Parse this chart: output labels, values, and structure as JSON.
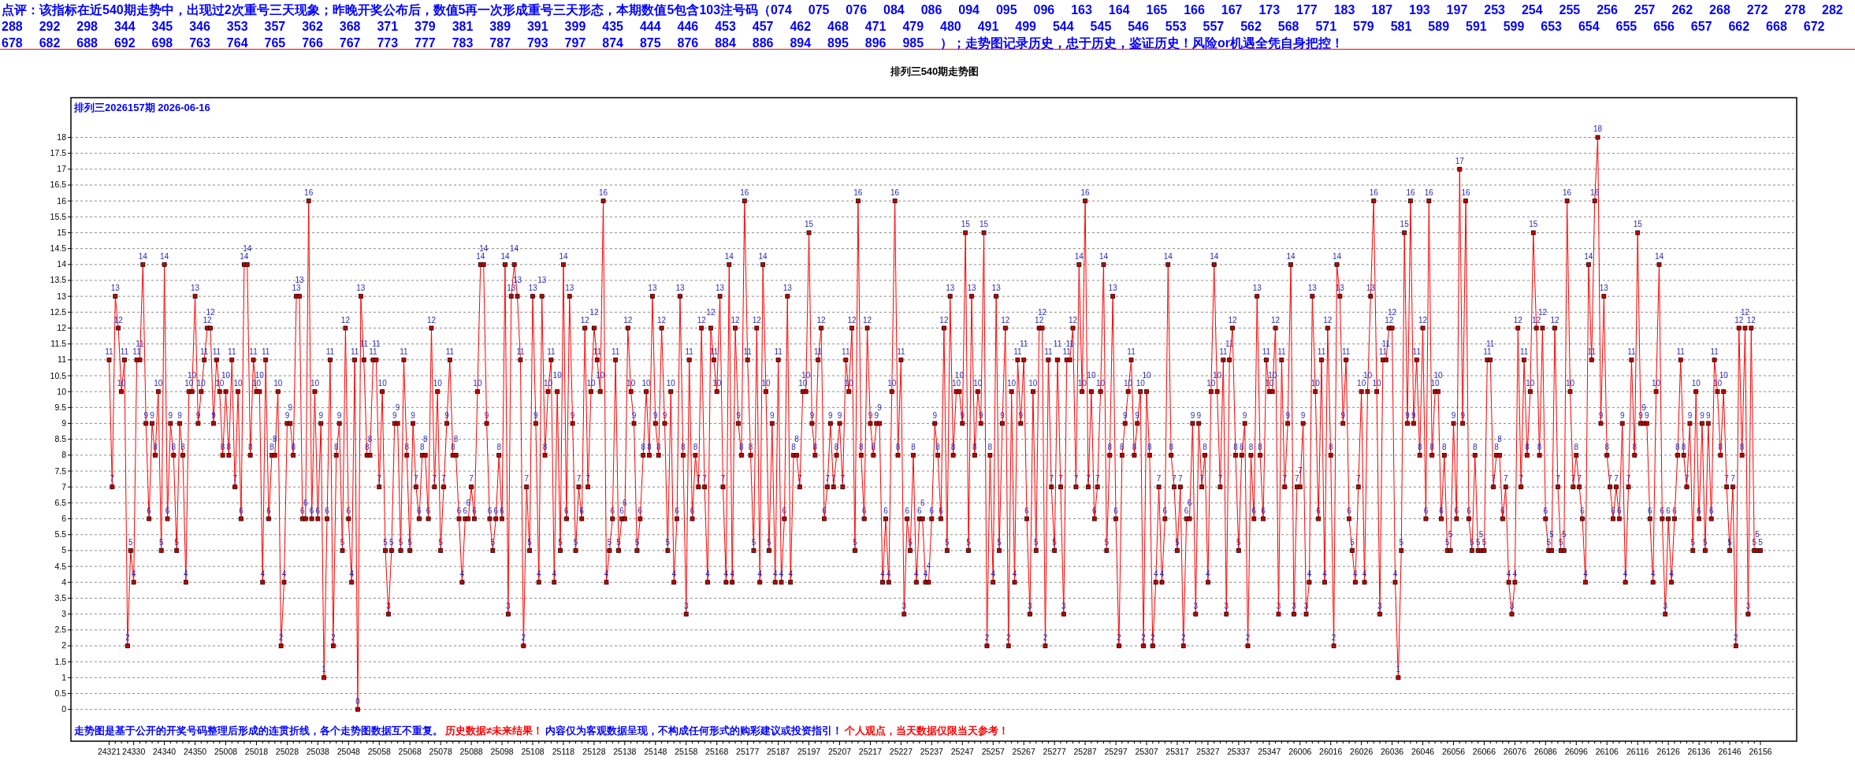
{
  "chart_data": {
    "type": "line",
    "title": "排列三540期走势图",
    "subtitle": "排列三2026157期 2026-06-16",
    "annotations": [
      "点评：该指标在近540期走势中，出现过2次重号三天现象；昨晚开奖公布后，数值5再一次形成重号三天形态，本期数值5包含103注号码（074 075 076 084 086 094 095 096 163 164 165 166 167 173 177 183 187 193 197 253 254 255 256 257 262 268 272 278 282 288 292 298 344 345 346 353 357 362 368 371 379 381 389 391 399 435 444 446 453 457 462 468 471 479 480 491 499 544 545 546 553 557 562 568 571 579 581 589 591 599 653 654 655 656 657 662 668 672 678 682 688 692 698 763 764 765 766 767 773 777 783 787 793 797 874 875 876 884 886 894 895 896 985 ）；走势图记录历史，忠于历史，鉴证历史！风险or机遇全凭自身把控！",
      "走势图是基于公开的开奖号码整理后形成的连贯折线，各个走势图数据互不重复。",
      "历史数据≠未来结果！",
      "内容仅为客观数据呈现，不构成任何形式的购彩建议或投资指引！",
      "个人观点，当天数据仅限当天参考！"
    ],
    "categories": [
      "24321",
      null,
      null,
      null,
      null,
      null,
      null,
      null,
      "24330",
      null,
      null,
      null,
      null,
      null,
      null,
      null,
      null,
      null,
      "24340",
      null,
      null,
      null,
      null,
      null,
      null,
      null,
      null,
      null,
      "24350",
      null,
      null,
      null,
      null,
      null,
      null,
      null,
      null,
      null,
      "25008",
      null,
      null,
      null,
      null,
      null,
      null,
      null,
      null,
      null,
      "25018",
      null,
      null,
      null,
      null,
      null,
      null,
      null,
      null,
      null,
      "25028",
      null,
      null,
      null,
      null,
      null,
      null,
      null,
      null,
      null,
      "25038",
      null,
      null,
      null,
      null,
      null,
      null,
      null,
      null,
      null,
      "25048",
      null,
      null,
      null,
      null,
      null,
      null,
      null,
      null,
      null,
      "25058",
      null,
      null,
      null,
      null,
      null,
      null,
      null,
      null,
      null,
      "25068",
      null,
      null,
      null,
      null,
      null,
      null,
      null,
      null,
      null,
      "25078",
      null,
      null,
      null,
      null,
      null,
      null,
      null,
      null,
      null,
      "25088",
      null,
      null,
      null,
      null,
      null,
      null,
      null,
      null,
      null,
      "25098",
      null,
      null,
      null,
      null,
      null,
      null,
      null,
      null,
      null,
      "25108",
      null,
      null,
      null,
      null,
      null,
      null,
      null,
      null,
      null,
      "25118",
      null,
      null,
      null,
      null,
      null,
      null,
      null,
      null,
      null,
      "25128",
      null,
      null,
      null,
      null,
      null,
      null,
      null,
      null,
      null,
      "25138",
      null,
      null,
      null,
      null,
      null,
      null,
      null,
      null,
      null,
      "25148",
      null,
      null,
      null,
      null,
      null,
      null,
      null,
      null,
      null,
      "25158",
      null,
      null,
      null,
      null,
      null,
      null,
      null,
      null,
      null,
      "25168",
      null,
      null,
      null,
      null,
      null,
      null,
      null,
      null,
      null,
      "25177",
      null,
      null,
      null,
      null,
      null,
      null,
      null,
      null,
      null,
      "25187",
      null,
      null,
      null,
      null,
      null,
      null,
      null,
      null,
      null,
      "25197",
      null,
      null,
      null,
      null,
      null,
      null,
      null,
      null,
      null,
      "25207",
      null,
      null,
      null,
      null,
      null,
      null,
      null,
      null,
      null,
      "25217",
      null,
      null,
      null,
      null,
      null,
      null,
      null,
      null,
      null,
      "25227",
      null,
      null,
      null,
      null,
      null,
      null,
      null,
      null,
      null,
      "25237",
      null,
      null,
      null,
      null,
      null,
      null,
      null,
      null,
      null,
      "25247",
      null,
      null,
      null,
      null,
      null,
      null,
      null,
      null,
      null,
      "25257",
      null,
      null,
      null,
      null,
      null,
      null,
      null,
      null,
      null,
      "25267",
      null,
      null,
      null,
      null,
      null,
      null,
      null,
      null,
      null,
      "25277",
      null,
      null,
      null,
      null,
      null,
      null,
      null,
      null,
      null,
      "25287",
      null,
      null,
      null,
      null,
      null,
      null,
      null,
      null,
      null,
      "25297",
      null,
      null,
      null,
      null,
      null,
      null,
      null,
      null,
      null,
      "25307",
      null,
      null,
      null,
      null,
      null,
      null,
      null,
      null,
      null,
      "25317",
      null,
      null,
      null,
      null,
      null,
      null,
      null,
      null,
      null,
      "25327",
      null,
      null,
      null,
      null,
      null,
      null,
      null,
      null,
      null,
      "25337",
      null,
      null,
      null,
      null,
      null,
      null,
      null,
      null,
      null,
      "25347",
      null,
      null,
      null,
      null,
      null,
      null,
      null,
      null,
      null,
      "26006",
      null,
      null,
      null,
      null,
      null,
      null,
      null,
      null,
      null,
      "26016",
      null,
      null,
      null,
      null,
      null,
      null,
      null,
      null,
      null,
      "26026",
      null,
      null,
      null,
      null,
      null,
      null,
      null,
      null,
      null,
      "26036",
      null,
      null,
      null,
      null,
      null,
      null,
      null,
      null,
      null,
      "26046",
      null,
      null,
      null,
      null,
      null,
      null,
      null,
      null,
      null,
      "26056",
      null,
      null,
      null,
      null,
      null,
      null,
      null,
      null,
      null,
      "26066",
      null,
      null,
      null,
      null,
      null,
      null,
      null,
      null,
      null,
      "26076",
      null,
      null,
      null,
      null,
      null,
      null,
      null,
      null,
      null,
      "26086",
      null,
      null,
      null,
      null,
      null,
      null,
      null,
      null,
      null,
      "26096",
      null,
      null,
      null,
      null,
      null,
      null,
      null,
      null,
      null,
      "26106",
      null,
      null,
      null,
      null,
      null,
      null,
      null,
      null,
      null,
      "26116",
      null,
      null,
      null,
      null,
      null,
      null,
      null,
      null,
      null,
      "26126",
      null,
      null,
      null,
      null,
      null,
      null,
      null,
      null,
      null,
      "26136",
      null,
      null,
      null,
      null,
      null,
      null,
      null,
      null,
      null,
      "26146",
      null,
      null,
      null,
      null,
      null,
      null,
      null,
      null,
      null,
      "26156"
    ],
    "series": [
      {
        "color": "#ff0000",
        "values": [
          11,
          7,
          13,
          12,
          10,
          11,
          2,
          5,
          4,
          11,
          11,
          14,
          9,
          6,
          9,
          8,
          10,
          5,
          14,
          6,
          9,
          8,
          5,
          9,
          8,
          4,
          10,
          10,
          13,
          9,
          10,
          11,
          12,
          12,
          9,
          11,
          10,
          8,
          10,
          8,
          11,
          7,
          10,
          6,
          14,
          14,
          8,
          11,
          10,
          10,
          4,
          11,
          6,
          8,
          8,
          10,
          2,
          4,
          9,
          9,
          8,
          13,
          13,
          6,
          6,
          16,
          6,
          10,
          6,
          9,
          1,
          6,
          11,
          2,
          8,
          9,
          5,
          12,
          6,
          4,
          11,
          0,
          13,
          11,
          8,
          8,
          11,
          11,
          7,
          10,
          5,
          3,
          5,
          9,
          9,
          5,
          11,
          8,
          5,
          9,
          7,
          6,
          8,
          8,
          6,
          12,
          7,
          10,
          5,
          7,
          9,
          11,
          8,
          8,
          6,
          4,
          6,
          6,
          7,
          6,
          10,
          14,
          14,
          9,
          6,
          5,
          6,
          8,
          6,
          14,
          3,
          13,
          14,
          13,
          11,
          2,
          7,
          5,
          13,
          9,
          4,
          13,
          8,
          10,
          11,
          4,
          10,
          5,
          14,
          6,
          13,
          9,
          5,
          7,
          6,
          12,
          7,
          10,
          12,
          11,
          10,
          16,
          4,
          5,
          6,
          11,
          5,
          6,
          6,
          12,
          10,
          9,
          5,
          6,
          8,
          10,
          8,
          13,
          9,
          8,
          12,
          9,
          5,
          10,
          4,
          6,
          13,
          8,
          3,
          11,
          6,
          8,
          7,
          12,
          7,
          4,
          12,
          11,
          10,
          13,
          7,
          4,
          14,
          4,
          12,
          9,
          8,
          16,
          11,
          8,
          5,
          12,
          4,
          14,
          10,
          5,
          9,
          4,
          11,
          4,
          6,
          13,
          4,
          8,
          8,
          7,
          10,
          10,
          15,
          9,
          8,
          11,
          12,
          6,
          7,
          9,
          7,
          8,
          9,
          7,
          11,
          10,
          12,
          5,
          16,
          8,
          6,
          12,
          9,
          8,
          9,
          9,
          4,
          6,
          4,
          10,
          16,
          8,
          11,
          3,
          6,
          5,
          8,
          4,
          6,
          6,
          4,
          4,
          6,
          9,
          8,
          6,
          12,
          5,
          13,
          8,
          10,
          10,
          9,
          15,
          5,
          13,
          8,
          10,
          9,
          15,
          2,
          8,
          4,
          13,
          5,
          9,
          12,
          2,
          10,
          4,
          11,
          9,
          11,
          6,
          3,
          10,
          5,
          12,
          12,
          2,
          11,
          7,
          5,
          11,
          7,
          3,
          11,
          11,
          12,
          7,
          14,
          10,
          16,
          7,
          10,
          6,
          7,
          10,
          14,
          5,
          8,
          13,
          6,
          2,
          8,
          9,
          10,
          11,
          8,
          9,
          10,
          2,
          10,
          8,
          2,
          4,
          7,
          4,
          6,
          14,
          8,
          7,
          5,
          7,
          2,
          6,
          6,
          9,
          3,
          9,
          7,
          8,
          4,
          10,
          14,
          10,
          7,
          11,
          3,
          11,
          12,
          8,
          5,
          8,
          9,
          2,
          8,
          6,
          13,
          8,
          6,
          11,
          10,
          10,
          12,
          3,
          11,
          7,
          9,
          14,
          3,
          7,
          7,
          9,
          3,
          4,
          13,
          10,
          6,
          11,
          4,
          12,
          8,
          2,
          14,
          13,
          9,
          11,
          6,
          5,
          4,
          7,
          10,
          4,
          10,
          13,
          16,
          10,
          3,
          11,
          11,
          12,
          12,
          4,
          1,
          5,
          15,
          9,
          16,
          9,
          11,
          8,
          12,
          6,
          16,
          8,
          10,
          10,
          6,
          8,
          5,
          5,
          9,
          6,
          17,
          9,
          16,
          6,
          5,
          8,
          5,
          5,
          5,
          11,
          11,
          7,
          8,
          8,
          6,
          7,
          4,
          3,
          4,
          12,
          7,
          11,
          8,
          10,
          15,
          12,
          8,
          12,
          6,
          5,
          5,
          12,
          7,
          5,
          5,
          16,
          10,
          7,
          8,
          7,
          6,
          4,
          14,
          11,
          16,
          18,
          9,
          13,
          8,
          7,
          6,
          7,
          6,
          9,
          4,
          7,
          11,
          8,
          15,
          9,
          9,
          9,
          6,
          4,
          10,
          14,
          6,
          3,
          6,
          4,
          6,
          8,
          11,
          8,
          7,
          9,
          5,
          10,
          6,
          9,
          5,
          9,
          6,
          11,
          10,
          8,
          10,
          7,
          5,
          7,
          2,
          12,
          8,
          12,
          3,
          12,
          5,
          5,
          5
        ]
      }
    ],
    "ylim": [
      -1,
      19.25
    ],
    "yticks": [
      0,
      0.5,
      1,
      1.5,
      2,
      2.5,
      3,
      3.5,
      4,
      4.5,
      5,
      5.5,
      6,
      6.5,
      7,
      7.5,
      8,
      8.5,
      9,
      9.5,
      10,
      10.5,
      11,
      11.5,
      12,
      12.5,
      13,
      13.5,
      14,
      14.5,
      15,
      15.5,
      16,
      16.5,
      17,
      17.5,
      18
    ],
    "grid": "y",
    "marker": "square",
    "line_style": "solid",
    "data_labels": true
  }
}
